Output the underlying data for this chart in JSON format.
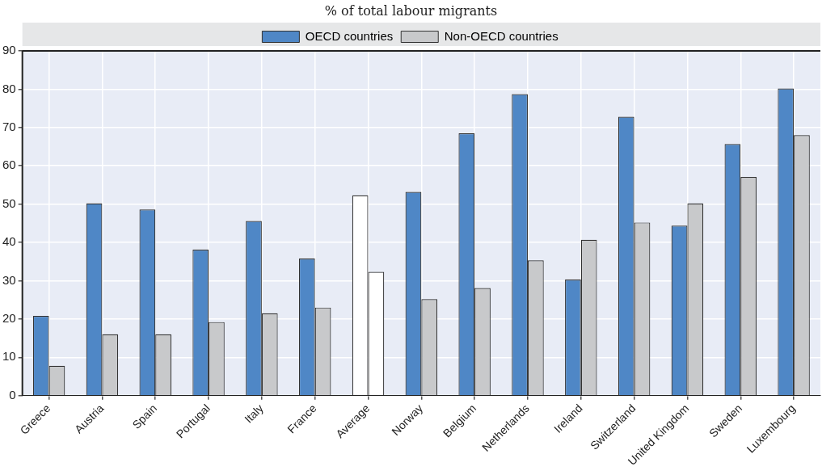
{
  "chart_data": {
    "type": "bar",
    "subtitle": "% of total labour migrants",
    "categories": [
      "Greece",
      "Austria",
      "Spain",
      "Portugal",
      "Italy",
      "France",
      "Average",
      "Norway",
      "Belgium",
      "Netherlands",
      "Ireland",
      "Switzerland",
      "United Kingdom",
      "Sweden",
      "Luxembourg"
    ],
    "series": [
      {
        "name": "OECD countries",
        "color": "#4f87c6",
        "colors": [
          "#4f87c6",
          "#4f87c6",
          "#4f87c6",
          "#4f87c6",
          "#4f87c6",
          "#4f87c6",
          "#ffffff",
          "#4f87c6",
          "#4f87c6",
          "#4f87c6",
          "#4f87c6",
          "#4f87c6",
          "#4f87c6",
          "#4f87c6",
          "#4f87c6"
        ],
        "values": [
          20.8,
          50.2,
          48.6,
          38.1,
          45.6,
          35.8,
          52.3,
          53.2,
          68.5,
          78.7,
          30.3,
          72.8,
          44.4,
          65.7,
          80.2
        ]
      },
      {
        "name": "Non-OECD countries",
        "color": "#c8c9cb",
        "colors": [
          "#c8c9cb",
          "#c8c9cb",
          "#c8c9cb",
          "#c8c9cb",
          "#c8c9cb",
          "#c8c9cb",
          "#ffffff",
          "#c8c9cb",
          "#c8c9cb",
          "#c8c9cb",
          "#c8c9cb",
          "#c8c9cb",
          "#c8c9cb",
          "#c8c9cb",
          "#c8c9cb"
        ],
        "values": [
          7.8,
          16,
          16,
          19.2,
          21.5,
          23,
          32.3,
          25.2,
          28.1,
          35.3,
          40.7,
          45.2,
          50.2,
          57.1,
          68.0
        ]
      }
    ],
    "ylim": [
      0,
      90
    ],
    "yticks": [
      0,
      10,
      20,
      30,
      40,
      50,
      60,
      70,
      80,
      90
    ],
    "grid": true,
    "legend": "top"
  }
}
